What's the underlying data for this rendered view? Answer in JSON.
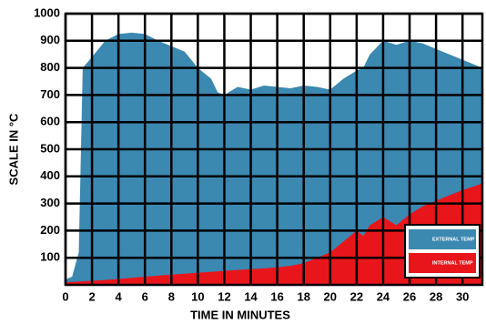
{
  "chart_data": {
    "type": "area",
    "xlabel": "TIME IN MINUTES",
    "ylabel": "SCALE IN °C",
    "x": [
      0,
      0.5,
      1,
      1.3,
      2,
      3,
      4,
      5,
      6,
      7,
      8,
      9,
      10,
      11,
      11.5,
      12,
      13,
      14,
      15,
      16,
      17,
      18,
      19,
      20,
      21,
      22,
      22.5,
      23,
      24,
      25,
      26,
      27,
      28,
      29,
      30,
      31,
      31.5
    ],
    "series": [
      {
        "name": "EXTERNAL TEMP",
        "color": "#3b88b1",
        "values": [
          20,
          30,
          120,
          800,
          840,
          900,
          925,
          930,
          925,
          900,
          880,
          860,
          800,
          760,
          710,
          700,
          730,
          720,
          735,
          730,
          725,
          735,
          730,
          720,
          760,
          790,
          800,
          850,
          900,
          885,
          900,
          890,
          870,
          850,
          830,
          810,
          800
        ]
      },
      {
        "name": "INTERNAL TEMP",
        "color": "#e8161b",
        "values": [
          10,
          11,
          12,
          13,
          15,
          18,
          22,
          26,
          30,
          34,
          38,
          41,
          45,
          48,
          50,
          52,
          55,
          58,
          61,
          65,
          70,
          80,
          100,
          120,
          160,
          200,
          180,
          220,
          250,
          220,
          260,
          290,
          310,
          330,
          350,
          365,
          375
        ]
      }
    ],
    "xlim": [
      0,
      31.5
    ],
    "ylim": [
      0,
      1000
    ],
    "xticks": [
      0,
      2,
      4,
      6,
      8,
      10,
      12,
      14,
      16,
      18,
      20,
      22,
      24,
      26,
      28,
      30
    ],
    "yticks": [
      100,
      200,
      300,
      400,
      500,
      600,
      700,
      800,
      900,
      1000
    ],
    "grid": true,
    "legend": "lower right"
  }
}
